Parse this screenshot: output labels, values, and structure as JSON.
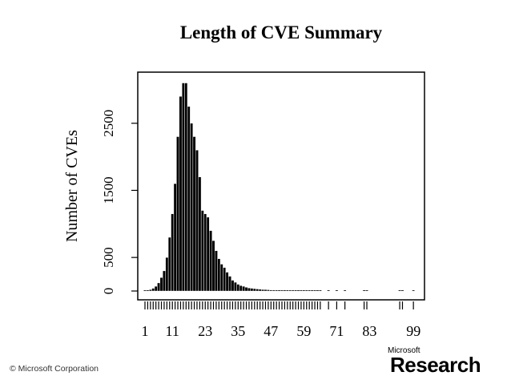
{
  "chart_data": {
    "type": "bar",
    "title": "Length of CVE Summary",
    "xlabel": "",
    "ylabel": "Number of CVEs",
    "xlim": [
      0,
      100
    ],
    "ylim": [
      0,
      3100
    ],
    "yticks": [
      0,
      500,
      1500,
      2500
    ],
    "xtick_labels": [
      "1",
      "11",
      "23",
      "35",
      "47",
      "59",
      "71",
      "83",
      "99"
    ],
    "grid": false,
    "x": [
      1,
      2,
      3,
      4,
      5,
      6,
      7,
      8,
      9,
      10,
      11,
      12,
      13,
      14,
      15,
      16,
      17,
      18,
      19,
      20,
      21,
      22,
      23,
      24,
      25,
      26,
      27,
      28,
      29,
      30,
      31,
      32,
      33,
      34,
      35,
      36,
      37,
      38,
      39,
      40,
      41,
      42,
      43,
      44,
      45,
      46,
      47,
      48,
      49,
      50,
      51,
      52,
      53,
      54,
      55,
      56,
      57,
      58,
      59,
      60,
      61,
      62,
      63,
      64,
      65,
      68,
      71,
      74,
      81,
      82,
      94,
      95,
      99
    ],
    "values": [
      5,
      10,
      20,
      40,
      70,
      120,
      200,
      300,
      500,
      800,
      1150,
      1600,
      2300,
      2900,
      3100,
      3100,
      2750,
      2500,
      2300,
      2100,
      1700,
      1200,
      1150,
      1100,
      900,
      750,
      600,
      480,
      400,
      350,
      280,
      220,
      160,
      130,
      100,
      80,
      70,
      55,
      45,
      40,
      35,
      30,
      25,
      22,
      20,
      18,
      15,
      13,
      12,
      10,
      10,
      10,
      9,
      8,
      8,
      7,
      7,
      6,
      6,
      5,
      5,
      5,
      4,
      4,
      4,
      3,
      3,
      3,
      3,
      2,
      2,
      2,
      2
    ]
  },
  "footer": {
    "copyright": "© Microsoft Corporation",
    "logo_small": "Microsoft",
    "logo_big": "Research"
  }
}
